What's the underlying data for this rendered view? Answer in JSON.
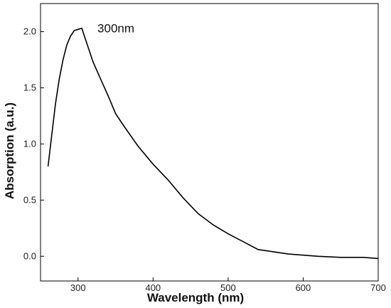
{
  "chart_data": {
    "type": "line",
    "title": "",
    "xlabel": "Wavelength (nm)",
    "ylabel": "Absorption (a.u.)",
    "xlim": [
      250,
      700
    ],
    "ylim": [
      -0.22,
      2.25
    ],
    "xticks": [
      300,
      400,
      500,
      600,
      700
    ],
    "yticks": [
      0.0,
      0.5,
      1.0,
      1.5,
      2.0
    ],
    "xtick_labels": [
      "300",
      "400",
      "500",
      "600",
      "700"
    ],
    "ytick_labels": [
      "0.0",
      "0.5",
      "1.0",
      "1.5",
      "2.0"
    ],
    "grid": false,
    "annotation": {
      "text": "300nm",
      "x": 305,
      "y": 2.02
    },
    "series": [
      {
        "color": "#000000",
        "x": [
          260,
          265,
          270,
          275,
          280,
          285,
          290,
          295,
          300,
          305,
          310,
          315,
          320,
          330,
          340,
          350,
          360,
          380,
          400,
          420,
          440,
          460,
          480,
          500,
          520,
          540,
          560,
          580,
          600,
          620,
          650,
          680,
          700
        ],
        "y": [
          0.8,
          1.08,
          1.36,
          1.58,
          1.75,
          1.88,
          1.96,
          2.01,
          2.02,
          2.03,
          1.93,
          1.83,
          1.73,
          1.58,
          1.43,
          1.27,
          1.17,
          0.98,
          0.82,
          0.68,
          0.52,
          0.38,
          0.28,
          0.2,
          0.13,
          0.06,
          0.04,
          0.02,
          0.01,
          0.0,
          -0.01,
          -0.01,
          -0.02
        ]
      }
    ]
  }
}
